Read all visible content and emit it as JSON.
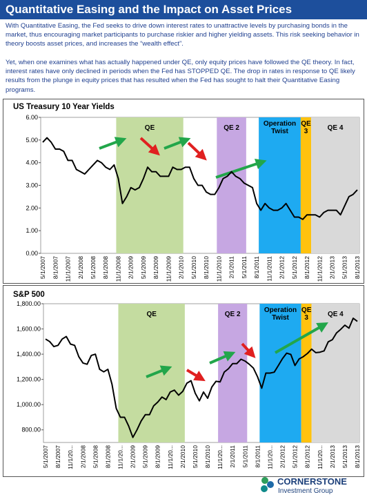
{
  "header": {
    "title": "Quantitative Easing and the Impact on Asset Prices"
  },
  "paragraphs": [
    "With Quantitative Easing, the Fed seeks to drive down interest rates to unattractive levels by purchasing bonds in the market, thus encouraging market participants to purchase  riskier and higher yielding assets. This risk seeking behavior in theory boosts asset prices, and increases the “wealth effect”.",
    "Yet, when one examines what has actually happened under QE, only equity prices have followed the QE theory. In fact, interest rates have only declined in periods when the Fed has STOPPED QE. The drop in rates in response to QE likely results from the plunge in equity prices that has resulted when the Fed has sought to halt their Quantitative Easing programs."
  ],
  "logo": {
    "name": "CORNERSTONE",
    "tagline": "Investment Group"
  },
  "chart_data": [
    {
      "type": "line",
      "title": "US Treasury 10 Year Yields",
      "color": "#000000",
      "categories": [
        "5/1/2007",
        null,
        null,
        "8/1/2007",
        null,
        null,
        "11/1/2007",
        null,
        null,
        "2/1/2008",
        null,
        null,
        "5/1/2008",
        null,
        null,
        "8/1/2008",
        null,
        null,
        "11/1/2008",
        null,
        null,
        "2/1/2009",
        null,
        null,
        "5/1/2009",
        null,
        null,
        "8/1/2009",
        null,
        null,
        "11/1/2009",
        null,
        null,
        "2/1/2010",
        null,
        null,
        "5/1/2010",
        null,
        null,
        "8/1/2010",
        null,
        null,
        "11/1/2010",
        null,
        null,
        "2/1/2011",
        null,
        null,
        "5/1/2011",
        null,
        null,
        "8/1/2011",
        null,
        null,
        "11/1/2011",
        null,
        null,
        "2/1/2012",
        null,
        null,
        "5/1/2012",
        null,
        null,
        "8/1/2012",
        null,
        null,
        "11/1/2012",
        null,
        null,
        "2/1/2013",
        null,
        null,
        "5/1/2013",
        null,
        null,
        "8/1/2013"
      ],
      "values": [
        4.9,
        5.1,
        4.9,
        4.6,
        4.6,
        4.5,
        4.1,
        4.1,
        3.7,
        3.6,
        3.5,
        3.7,
        3.9,
        4.1,
        4.0,
        3.8,
        3.7,
        3.9,
        3.3,
        2.2,
        2.5,
        2.9,
        2.8,
        2.9,
        3.3,
        3.8,
        3.6,
        3.6,
        3.4,
        3.4,
        3.4,
        3.8,
        3.7,
        3.7,
        3.8,
        3.8,
        3.3,
        3.0,
        3.0,
        2.7,
        2.6,
        2.6,
        2.9,
        3.3,
        3.4,
        3.6,
        3.4,
        3.3,
        3.1,
        3.0,
        2.9,
        2.2,
        1.9,
        2.2,
        2.0,
        1.9,
        1.9,
        2.0,
        2.2,
        1.9,
        1.6,
        1.6,
        1.5,
        1.7,
        1.7,
        1.7,
        1.6,
        1.8,
        1.9,
        1.9,
        1.9,
        1.7,
        2.1,
        2.5,
        2.6,
        2.8
      ],
      "ylim": [
        0,
        6
      ],
      "yticks": [
        {
          "value": 0,
          "label": "0.00"
        },
        {
          "value": 1,
          "label": "1.00"
        },
        {
          "value": 2,
          "label": "2.00"
        },
        {
          "value": 3,
          "label": "3.00"
        },
        {
          "value": 4,
          "label": "4.00"
        },
        {
          "value": 5,
          "label": "5.00"
        },
        {
          "value": 6,
          "label": "6.00"
        }
      ],
      "grid": false,
      "regions": [
        {
          "label": "QE",
          "color": "#c4dca0"
        },
        {
          "label": "QE 2",
          "color": "#c6a7e2"
        },
        {
          "label": "Operation Twist",
          "color": "#1eaaf1"
        },
        {
          "label": "QE 3",
          "color": "#ffc20e"
        },
        {
          "label": "QE 4",
          "color": "#d9d9d9"
        }
      ]
    },
    {
      "type": "line",
      "title": "S&P 500",
      "color": "#000000",
      "categories": [
        "5/1/2007",
        null,
        null,
        "8/1/2007",
        null,
        null,
        "11/1/20...",
        null,
        null,
        "2/1/2008",
        null,
        null,
        "5/1/2008",
        null,
        null,
        "8/1/2008",
        null,
        null,
        "11/1/20...",
        null,
        null,
        "2/1/2009",
        null,
        null,
        "5/1/2009",
        null,
        null,
        "8/1/2009",
        null,
        null,
        "11/1/20...",
        null,
        null,
        "2/1/2010",
        null,
        null,
        "5/1/2010",
        null,
        null,
        "8/1/2010",
        null,
        null,
        "11/1/20...",
        null,
        null,
        "2/1/2011",
        null,
        null,
        "5/1/2011",
        null,
        null,
        "8/1/2011",
        null,
        null,
        "11/1/20...",
        null,
        null,
        "2/1/2012",
        null,
        null,
        "5/1/2012",
        null,
        null,
        "8/1/2012",
        null,
        null,
        "11/1/20...",
        null,
        null,
        "2/1/2013",
        null,
        null,
        "5/1/2013",
        null,
        null,
        "8/1/2013"
      ],
      "values": [
        1520,
        1500,
        1460,
        1470,
        1520,
        1540,
        1480,
        1470,
        1380,
        1330,
        1320,
        1390,
        1400,
        1280,
        1260,
        1280,
        1160,
        970,
        900,
        900,
        830,
        740,
        800,
        870,
        920,
        920,
        990,
        1020,
        1060,
        1040,
        1100,
        1115,
        1075,
        1105,
        1170,
        1190,
        1090,
        1030,
        1100,
        1050,
        1140,
        1185,
        1180,
        1258,
        1285,
        1325,
        1325,
        1360,
        1345,
        1320,
        1290,
        1220,
        1130,
        1250,
        1250,
        1257,
        1310,
        1365,
        1408,
        1398,
        1310,
        1362,
        1380,
        1406,
        1440,
        1412,
        1416,
        1426,
        1498,
        1515,
        1569,
        1597,
        1630,
        1606,
        1685,
        1660
      ],
      "ylim": [
        700,
        1800
      ],
      "yticks": [
        {
          "value": 800,
          "label": "800.00"
        },
        {
          "value": 1000,
          "label": "1,000.00"
        },
        {
          "value": 1200,
          "label": "1,200.00"
        },
        {
          "value": 1400,
          "label": "1,400.00"
        },
        {
          "value": 1600,
          "label": "1,600.00"
        },
        {
          "value": 1800,
          "label": "1,800.00"
        }
      ],
      "grid": false,
      "regions": [
        {
          "label": "QE",
          "color": "#c4dca0"
        },
        {
          "label": "QE 2",
          "color": "#c6a7e2"
        },
        {
          "label": "Operation Twist",
          "color": "#1eaaf1"
        },
        {
          "label": "QE 3",
          "color": "#ffc20e"
        },
        {
          "label": "QE 4",
          "color": "#d9d9d9"
        }
      ]
    }
  ]
}
